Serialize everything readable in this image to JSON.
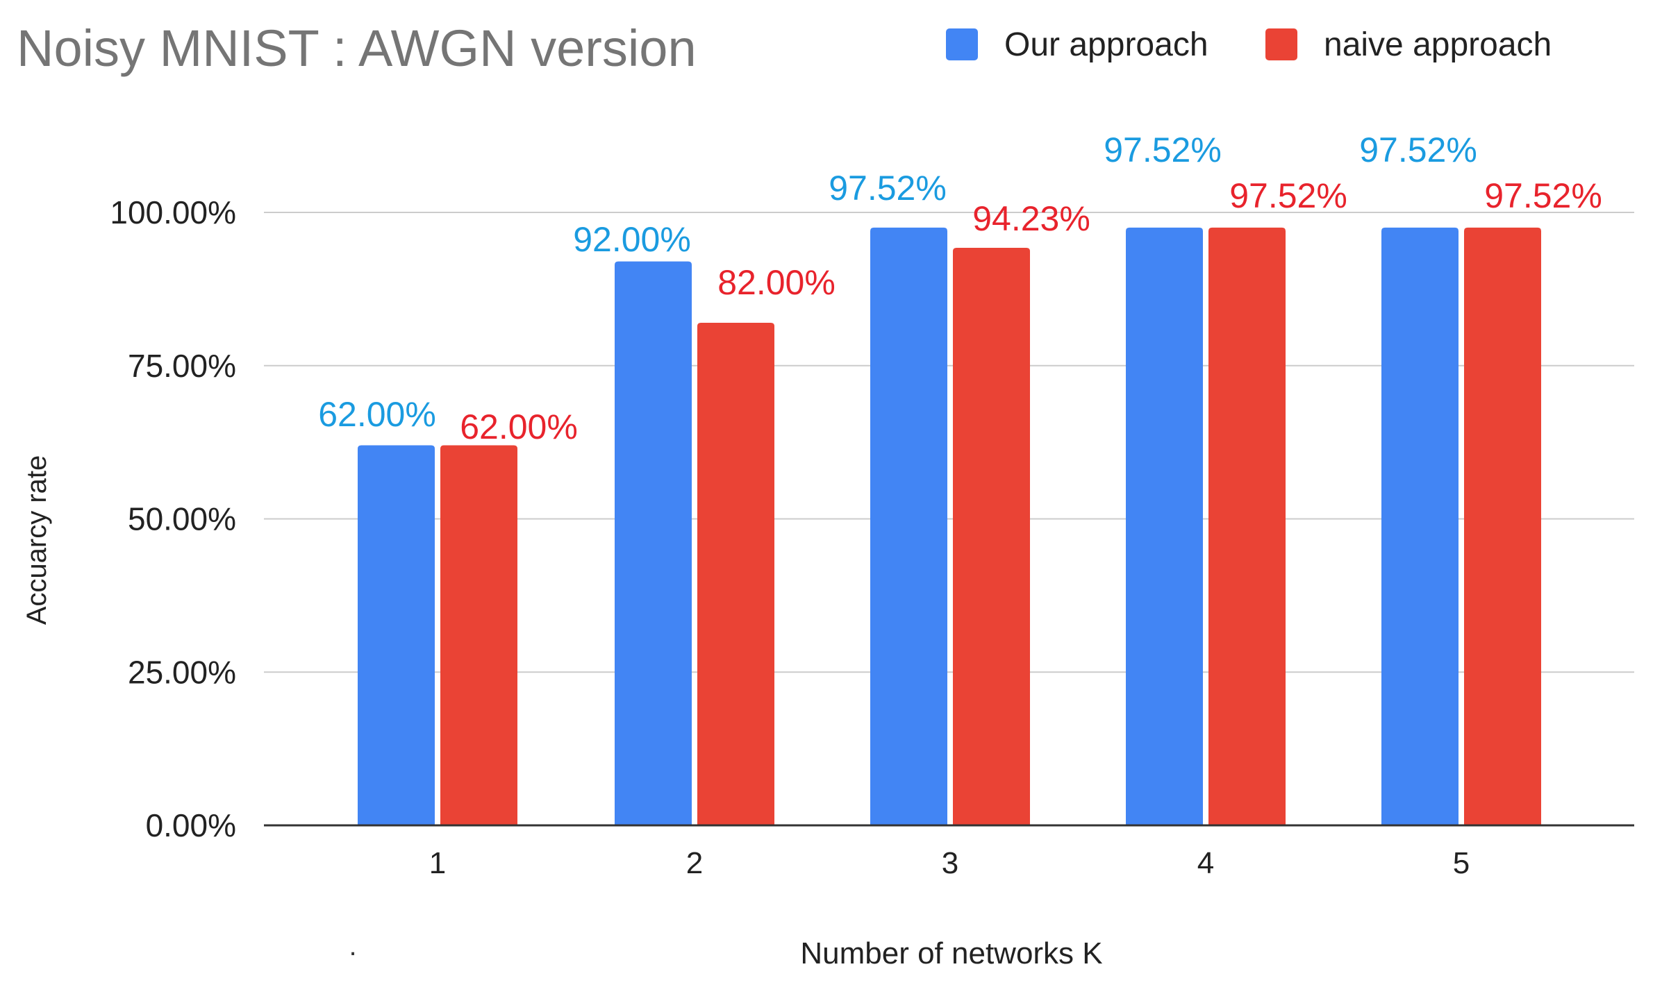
{
  "chart_data": {
    "type": "bar",
    "title": "Noisy MNIST : AWGN version",
    "xlabel": "Number of networks K",
    "ylabel": "Accuarcy rate",
    "categories": [
      "1",
      "2",
      "3",
      "4",
      "5"
    ],
    "series": [
      {
        "name": "Our approach",
        "color": "#4285F4",
        "label_color": "#1A9BE0",
        "values": [
          62.0,
          92.0,
          97.52,
          97.52,
          97.52
        ],
        "labels": [
          "62.00%",
          "92.00%",
          "97.52%",
          "97.52%",
          "97.52%"
        ]
      },
      {
        "name": "naive approach",
        "color": "#EA4335",
        "label_color": "#E8232C",
        "values": [
          62.0,
          82.0,
          94.23,
          97.52,
          97.52
        ],
        "labels": [
          "62.00%",
          "82.00%",
          "94.23%",
          "97.52%",
          "97.52%"
        ]
      }
    ],
    "ylim": [
      0,
      100
    ],
    "yticks": [
      0,
      25,
      50,
      75,
      100
    ],
    "ytick_labels": [
      "0.00%",
      "25.00%",
      "50.00%",
      "75.00%",
      "100.00%"
    ],
    "grid": true,
    "legend_position": "top-right",
    "stray_mark": "."
  }
}
